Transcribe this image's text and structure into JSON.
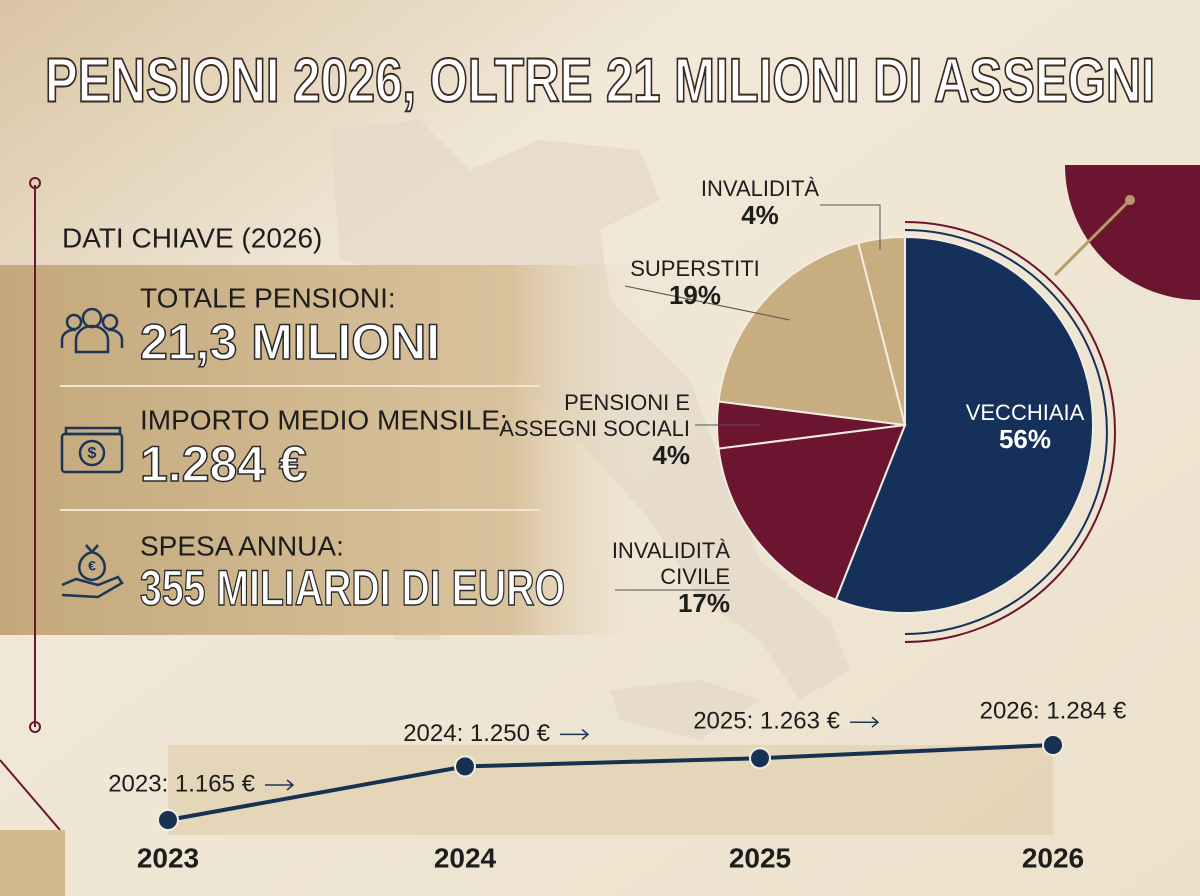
{
  "title": "PENSIONI 2026, OLTRE 21 MILIONI DI ASSEGNI",
  "key_data": {
    "heading": "DATI CHIAVE (2026)",
    "items": [
      {
        "label": "TOTALE PENSIONI:",
        "value": "21,3 MILIONI"
      },
      {
        "label": "IMPORTO MEDIO MENSILE:",
        "value": "1.284 €"
      },
      {
        "label": "SPESA ANNUA:",
        "value": "355 MILIARDI DI EURO"
      }
    ]
  },
  "chart_data": [
    {
      "type": "pie",
      "categories": [
        "VECCHIAIA",
        "INVALIDITÀ CIVILE",
        "PENSIONI E ASSEGNI SOCIALI",
        "SUPERSTITI",
        "INVALIDITÀ"
      ],
      "values": [
        56,
        17,
        4,
        19,
        4
      ],
      "value_labels": [
        "56%",
        "17%",
        "4%",
        "19%",
        "4%"
      ],
      "colors": [
        "#15305a",
        "#6b1530",
        "#6b1530",
        "#c8ad80",
        "#c8ad80"
      ]
    },
    {
      "type": "line",
      "categories": [
        "2023",
        "2024",
        "2025",
        "2026"
      ],
      "values": [
        1165,
        1250,
        1263,
        1284
      ],
      "value_labels": [
        "2023: 1.165 €",
        "2024: 1.250 €",
        "2025: 1.263 €",
        "2026: 1.284 €"
      ],
      "color": "#173152"
    }
  ]
}
